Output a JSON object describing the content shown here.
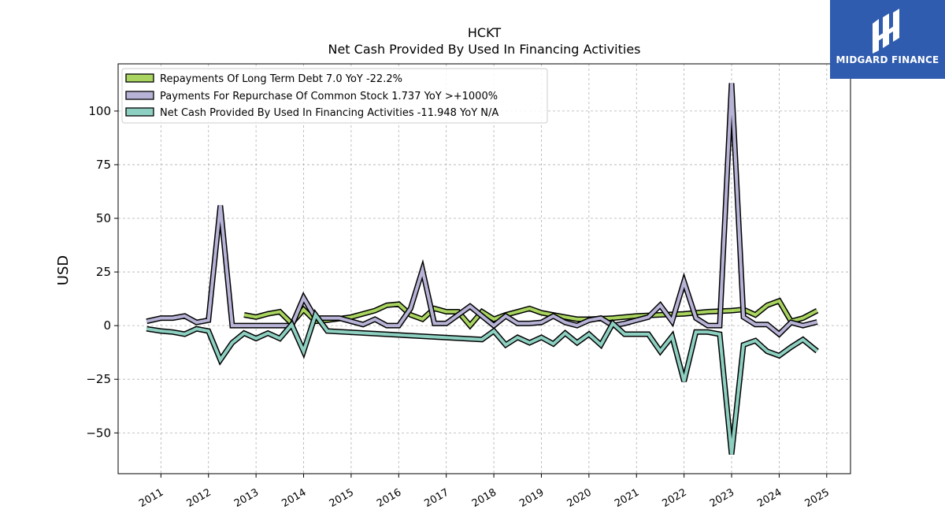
{
  "logo": {
    "text": "MIDGARD FINANCE",
    "icon": "midgard-logo-icon",
    "background": "#2f5cae"
  },
  "chart_data": {
    "type": "line",
    "title": "HCKT",
    "subtitle": "Net Cash Provided By Used In Financing Activities",
    "xlabel": "",
    "ylabel": "USD",
    "xlim": [
      2010.1,
      2025.5
    ],
    "ylim": [
      -69,
      122
    ],
    "x_ticks": [
      "2011",
      "2012",
      "2013",
      "2014",
      "2015",
      "2016",
      "2017",
      "2018",
      "2019",
      "2020",
      "2021",
      "2022",
      "2023",
      "2024",
      "2025"
    ],
    "y_ticks": [
      -50,
      -25,
      0,
      25,
      50,
      75,
      100
    ],
    "grid": true,
    "legend_position": "top-left",
    "series": [
      {
        "name": "Repayments Of Long Term Debt",
        "legend": "Repayments Of Long Term Debt  7.0 YoY -22.2%",
        "color": "#a8d45f",
        "points": [
          [
            2012.75,
            5.0
          ],
          [
            2013.0,
            4.0
          ],
          [
            2013.25,
            5.5
          ],
          [
            2013.5,
            6.5
          ],
          [
            2013.75,
            1.0
          ],
          [
            2014.0,
            7.5
          ],
          [
            2014.25,
            2.0
          ],
          [
            2014.5,
            2.5
          ],
          [
            2015.0,
            4.0
          ],
          [
            2015.5,
            7.0
          ],
          [
            2015.75,
            9.5
          ],
          [
            2016.0,
            10.0
          ],
          [
            2016.25,
            5.0
          ],
          [
            2016.5,
            3.0
          ],
          [
            2016.75,
            8.0
          ],
          [
            2017.0,
            6.5
          ],
          [
            2017.25,
            6.5
          ],
          [
            2017.5,
            0.0
          ],
          [
            2017.75,
            6.5
          ],
          [
            2018.0,
            3.0
          ],
          [
            2018.25,
            5.0
          ],
          [
            2018.5,
            6.5
          ],
          [
            2018.75,
            8.0
          ],
          [
            2019.0,
            6.0
          ],
          [
            2019.5,
            4.0
          ],
          [
            2019.75,
            3.0
          ],
          [
            2020.0,
            3.0
          ],
          [
            2020.5,
            3.5
          ],
          [
            2021.0,
            4.5
          ],
          [
            2021.5,
            5.0
          ],
          [
            2022.0,
            5.5
          ],
          [
            2022.5,
            6.5
          ],
          [
            2023.0,
            7.0
          ],
          [
            2023.25,
            7.5
          ],
          [
            2023.5,
            5.0
          ],
          [
            2023.75,
            9.5
          ],
          [
            2024.0,
            11.5
          ],
          [
            2024.25,
            2.0
          ],
          [
            2024.5,
            3.5
          ],
          [
            2024.8,
            7.0
          ]
        ]
      },
      {
        "name": "Payments For Repurchase Of Common Stock",
        "legend": "Payments For Repurchase Of Common Stock  1.737 YoY >+1000%",
        "color": "#b7b3d6",
        "points": [
          [
            2010.7,
            2.0
          ],
          [
            2011.0,
            3.5
          ],
          [
            2011.25,
            3.5
          ],
          [
            2011.5,
            4.5
          ],
          [
            2011.75,
            1.5
          ],
          [
            2012.0,
            2.5
          ],
          [
            2012.25,
            56.0
          ],
          [
            2012.5,
            0.0
          ],
          [
            2012.75,
            0.0
          ],
          [
            2013.0,
            0.0
          ],
          [
            2013.25,
            0.0
          ],
          [
            2013.5,
            0.0
          ],
          [
            2013.75,
            0.0
          ],
          [
            2014.0,
            13.0
          ],
          [
            2014.25,
            3.5
          ],
          [
            2014.5,
            3.5
          ],
          [
            2014.75,
            3.5
          ],
          [
            2015.0,
            2.0
          ],
          [
            2015.25,
            0.5
          ],
          [
            2015.5,
            3.0
          ],
          [
            2015.75,
            0.0
          ],
          [
            2016.0,
            0.0
          ],
          [
            2016.25,
            8.0
          ],
          [
            2016.5,
            26.0
          ],
          [
            2016.75,
            1.0
          ],
          [
            2017.0,
            1.0
          ],
          [
            2017.25,
            5.0
          ],
          [
            2017.5,
            9.0
          ],
          [
            2017.75,
            4.5
          ],
          [
            2018.0,
            0.0
          ],
          [
            2018.25,
            4.5
          ],
          [
            2018.5,
            1.0
          ],
          [
            2018.75,
            1.0
          ],
          [
            2019.0,
            1.5
          ],
          [
            2019.25,
            4.5
          ],
          [
            2019.5,
            1.5
          ],
          [
            2019.75,
            0.0
          ],
          [
            2020.0,
            2.5
          ],
          [
            2020.25,
            3.5
          ],
          [
            2020.5,
            0.0
          ],
          [
            2020.75,
            1.0
          ],
          [
            2021.0,
            2.5
          ],
          [
            2021.25,
            4.0
          ],
          [
            2021.5,
            9.5
          ],
          [
            2021.75,
            2.0
          ],
          [
            2022.0,
            20.5
          ],
          [
            2022.25,
            3.5
          ],
          [
            2022.5,
            0.0
          ],
          [
            2022.75,
            0.0
          ],
          [
            2023.0,
            113.0
          ],
          [
            2023.25,
            4.0
          ],
          [
            2023.5,
            0.5
          ],
          [
            2023.75,
            0.5
          ],
          [
            2024.0,
            -4.0
          ],
          [
            2024.25,
            1.5
          ],
          [
            2024.5,
            0.0
          ],
          [
            2024.8,
            1.7
          ]
        ]
      },
      {
        "name": "Net Cash Provided By Used In Financing Activities",
        "legend": "Net Cash Provided By Used In Financing Activities  -11.948 YoY N/A",
        "color": "#8dd0c1",
        "points": [
          [
            2010.7,
            -1.5
          ],
          [
            2011.0,
            -2.5
          ],
          [
            2011.25,
            -3.0
          ],
          [
            2011.5,
            -4.0
          ],
          [
            2011.75,
            -1.5
          ],
          [
            2012.0,
            -2.5
          ],
          [
            2012.25,
            -16.0
          ],
          [
            2012.5,
            -8.0
          ],
          [
            2012.75,
            -3.5
          ],
          [
            2013.0,
            -6.0
          ],
          [
            2013.25,
            -3.5
          ],
          [
            2013.5,
            -6.0
          ],
          [
            2013.75,
            0.5
          ],
          [
            2014.0,
            -12.0
          ],
          [
            2014.25,
            5.0
          ],
          [
            2014.5,
            -2.5
          ],
          [
            2017.75,
            -6.5
          ],
          [
            2018.0,
            -2.5
          ],
          [
            2018.25,
            -9.0
          ],
          [
            2018.5,
            -5.5
          ],
          [
            2018.75,
            -8.0
          ],
          [
            2019.0,
            -5.5
          ],
          [
            2019.25,
            -8.5
          ],
          [
            2019.5,
            -3.5
          ],
          [
            2019.75,
            -8.0
          ],
          [
            2020.0,
            -4.0
          ],
          [
            2020.25,
            -9.0
          ],
          [
            2020.5,
            1.0
          ],
          [
            2020.75,
            -4.0
          ],
          [
            2021.0,
            -4.0
          ],
          [
            2021.25,
            -4.0
          ],
          [
            2021.5,
            -12.0
          ],
          [
            2021.75,
            -5.0
          ],
          [
            2022.0,
            -26.0
          ],
          [
            2022.25,
            -3.0
          ],
          [
            2022.5,
            -3.0
          ],
          [
            2022.75,
            -4.0
          ],
          [
            2023.0,
            -60.0
          ],
          [
            2023.25,
            -9.0
          ],
          [
            2023.5,
            -7.0
          ],
          [
            2023.75,
            -12.0
          ],
          [
            2024.0,
            -14.0
          ],
          [
            2024.25,
            -10.0
          ],
          [
            2024.5,
            -6.5
          ],
          [
            2024.8,
            -11.9
          ]
        ]
      }
    ]
  }
}
